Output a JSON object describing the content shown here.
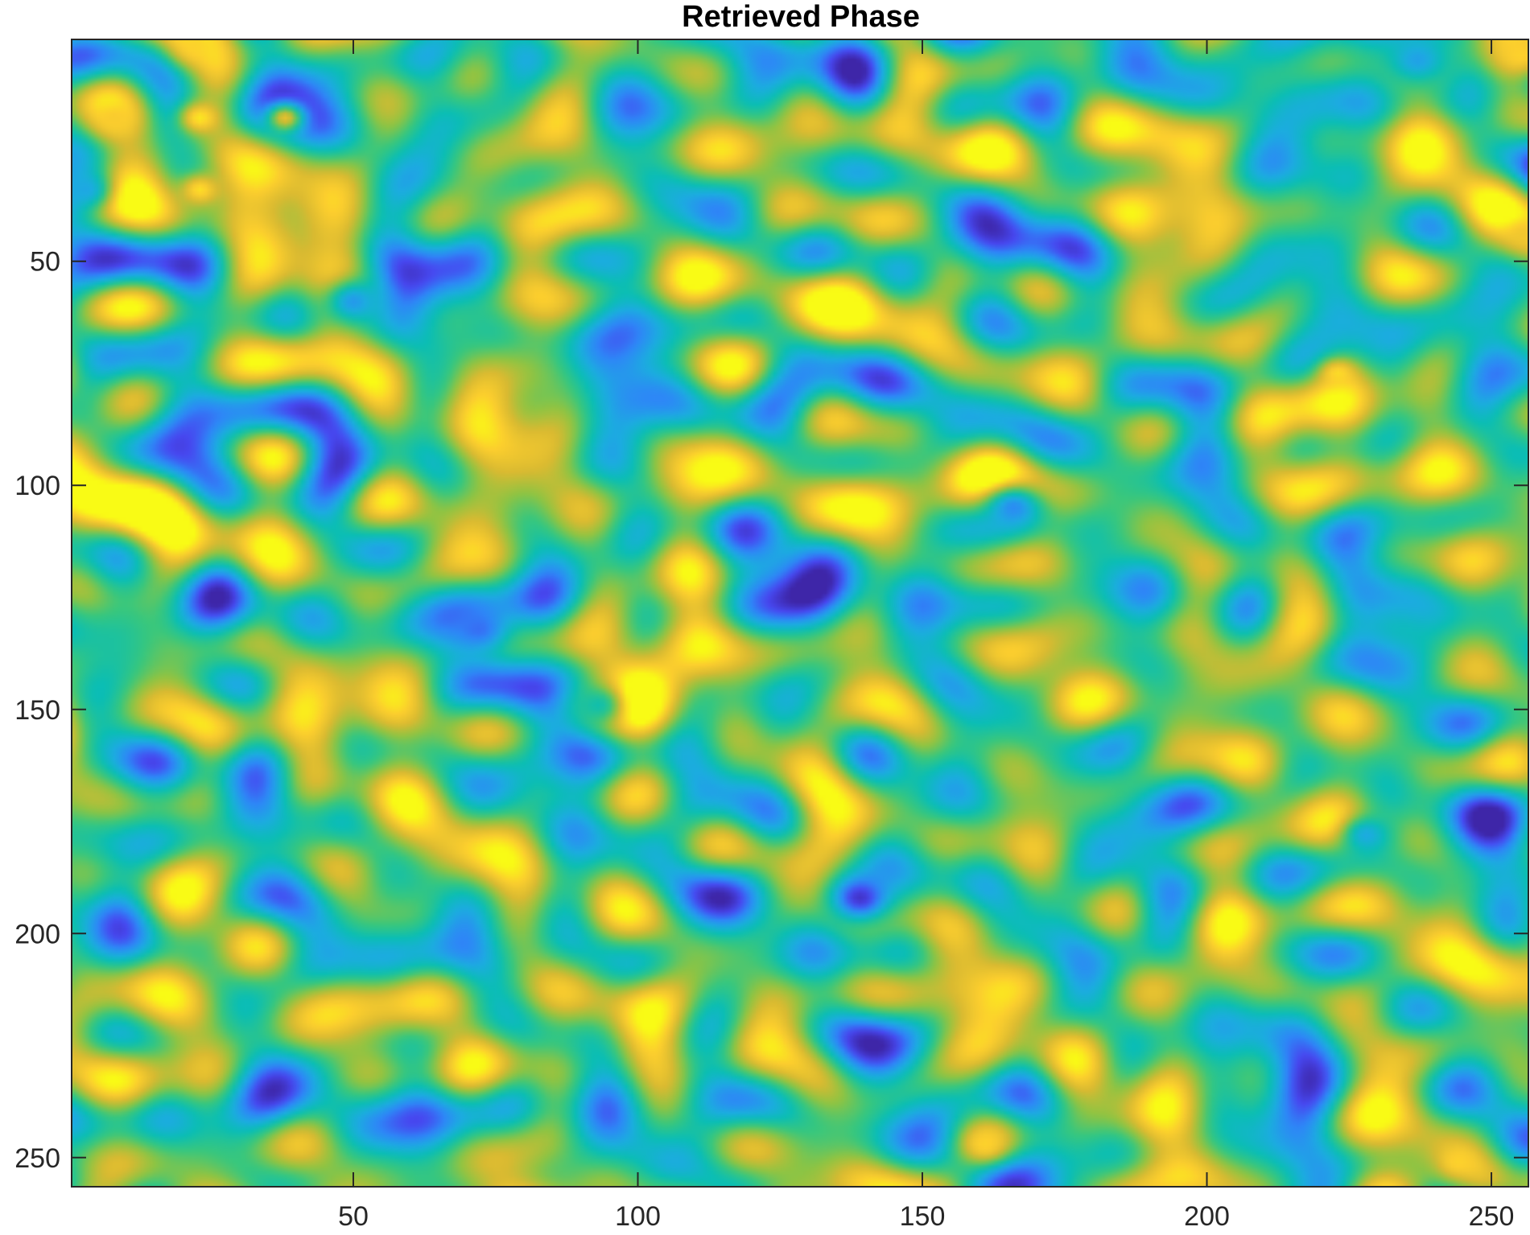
{
  "chart_data": {
    "type": "heatmap",
    "title": "Retrieved Phase",
    "xlabel": "",
    "ylabel": "",
    "xlim": [
      0.5,
      256.5
    ],
    "ylim": [
      0.5,
      256.5
    ],
    "y_direction": "reversed",
    "grid": false,
    "legend": "none",
    "colormap": "parula",
    "colormap_stops": [
      "#3e26a8",
      "#4748f0",
      "#2e87f7",
      "#1cace0",
      "#0bbeb4",
      "#38c77e",
      "#8fc443",
      "#d9ba31",
      "#fcce2e",
      "#f9fb15"
    ],
    "x_ticks": [
      50,
      100,
      150,
      200,
      250
    ],
    "x_tick_labels": [
      "50",
      "100",
      "150",
      "200",
      "250"
    ],
    "y_ticks": [
      50,
      100,
      150,
      200,
      250
    ],
    "y_tick_labels": [
      "50",
      "100",
      "150",
      "200",
      "250"
    ],
    "background_level": 0.58,
    "features": [
      {
        "x": 50,
        "y": 59,
        "sigma": 4.0,
        "level": 0.28
      },
      {
        "x": 72,
        "y": 132,
        "sigma": 3.8,
        "level": 0.18
      },
      {
        "x": 166,
        "y": 105,
        "sigma": 4.0,
        "level": 0.24
      },
      {
        "x": 139,
        "y": 192,
        "sigma": 4.2,
        "level": 0.05
      },
      {
        "x": 228,
        "y": 178,
        "sigma": 3.0,
        "level": 0.33
      },
      {
        "x": 93,
        "y": 149,
        "sigma": 4.0,
        "level": 0.46
      },
      {
        "x": 223,
        "y": 75,
        "sigma": 2.2,
        "level": 0.92
      },
      {
        "x": 161,
        "y": 247,
        "sigma": 2.5,
        "level": 0.9
      },
      {
        "x": 8,
        "y": 18,
        "sigma": 3.0,
        "level": 0.88
      },
      {
        "x": 23,
        "y": 18,
        "sigma": 2.5,
        "level": 0.95
      },
      {
        "x": 23,
        "y": 34,
        "sigma": 2.5,
        "level": 0.93
      },
      {
        "x": 22,
        "y": 2,
        "sigma": 3.0,
        "level": 0.9
      },
      {
        "x": 38,
        "y": 18,
        "sigma": 2.5,
        "level": 0.82
      },
      {
        "x": 237,
        "y": 5,
        "sigma": 5.0,
        "level": 0.3
      },
      {
        "x": 255,
        "y": 4,
        "sigma": 3.0,
        "level": 0.9
      },
      {
        "x": 256,
        "y": 44,
        "sigma": 3.0,
        "level": 0.85
      },
      {
        "x": 244,
        "y": 251,
        "sigma": 2.0,
        "level": 0.9
      },
      {
        "x": 3,
        "y": 34,
        "sigma": 3.0,
        "level": 0.32
      }
    ]
  }
}
